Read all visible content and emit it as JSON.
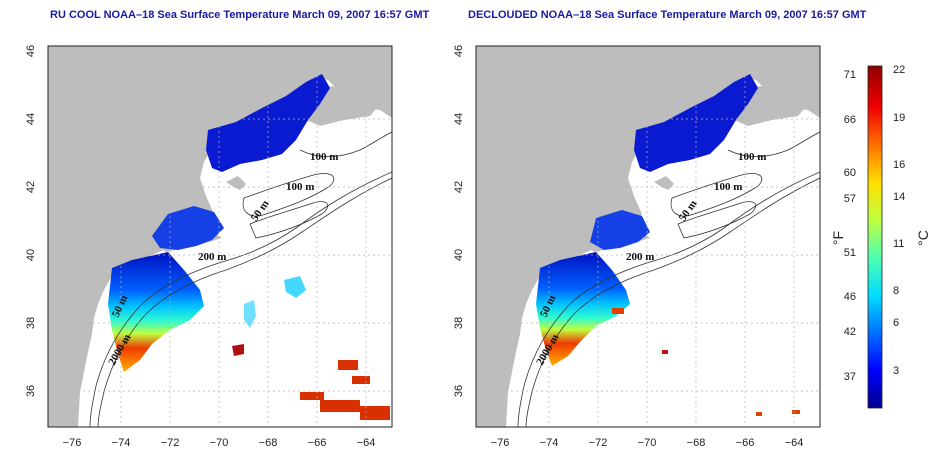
{
  "panels": [
    {
      "id": "left",
      "title": "RU COOL NOAA–18 Sea Surface Temperature March 09, 2007 16:57 GMT",
      "contour_labels": [
        "100 m",
        "100 m",
        "50 m",
        "200 m",
        "50 m",
        "2000 m"
      ]
    },
    {
      "id": "right",
      "title": "DECLOUDED NOAA–18 Sea Surface Temperature March 09, 2007 16:57 GMT",
      "contour_labels": [
        "100 m",
        "100 m",
        "50 m",
        "200 m",
        "50 m",
        "2000 m"
      ]
    }
  ],
  "axes": {
    "lon_ticks": [
      "−76",
      "−74",
      "−72",
      "−70",
      "−68",
      "−66",
      "−64"
    ],
    "lat_ticks": [
      "46",
      "44",
      "42",
      "40",
      "38",
      "36"
    ],
    "lon_values": [
      -76,
      -74,
      -72,
      -70,
      -68,
      -66,
      -64
    ],
    "lat_values": [
      46,
      44,
      42,
      40,
      38,
      36
    ],
    "lon_range": [
      -77,
      -63
    ],
    "lat_range": [
      35,
      46
    ]
  },
  "colorbar": {
    "fahrenheit_label": "°F",
    "celsius_label": "°C",
    "fahrenheit_ticks": [
      "71",
      "66",
      "60",
      "57",
      "51",
      "46",
      "42",
      "37"
    ],
    "celsius_ticks": [
      "22",
      "19",
      "16",
      "14",
      "11",
      "8",
      "6",
      "3"
    ],
    "fahrenheit_values": [
      71,
      66,
      60,
      57,
      51,
      46,
      42,
      37
    ],
    "celsius_values": [
      22,
      19,
      16,
      14,
      11,
      8,
      6,
      3
    ],
    "range_c": [
      0,
      22
    ],
    "colors": [
      "#00008f",
      "#0000ff",
      "#006fff",
      "#00dfff",
      "#4fffaf",
      "#bfff3f",
      "#ffdf00",
      "#ff7000",
      "#ef0000",
      "#8f0000"
    ]
  },
  "style": {
    "land_color": "#bdbdbd",
    "title_color": "#1a1aa0",
    "grid_color": "#b5b5b5"
  }
}
